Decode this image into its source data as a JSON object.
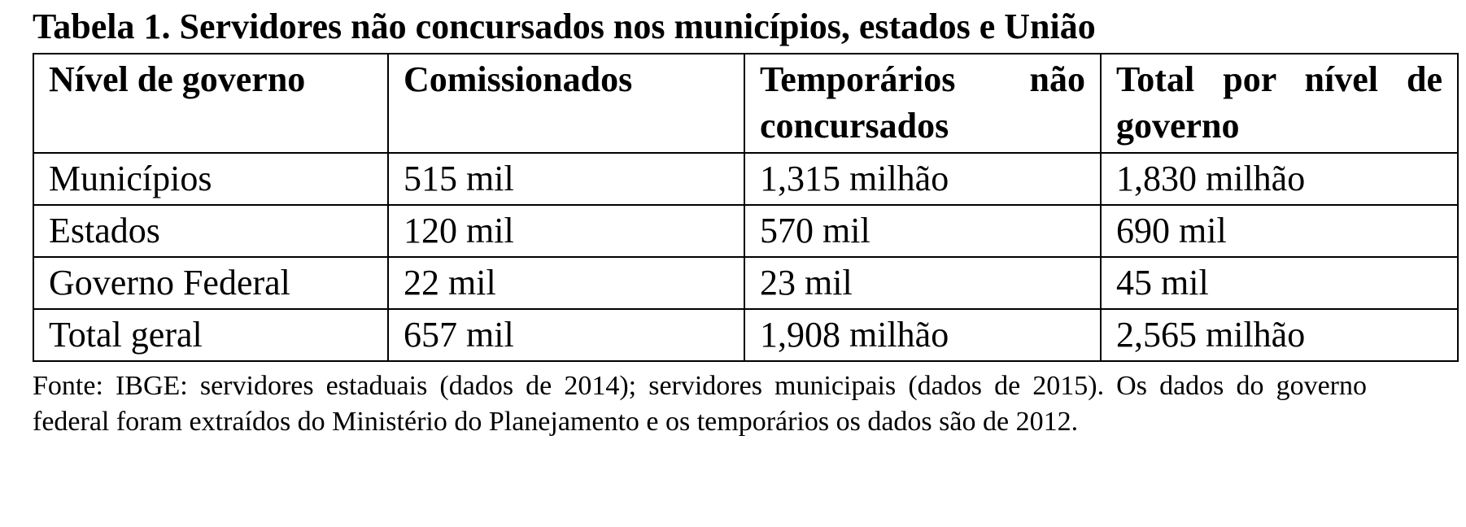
{
  "title": "Tabela 1. Servidores não concursados nos municípios, estados e União",
  "table": {
    "headers": [
      "Nível de governo",
      "Comissionados",
      "Temporários não concursados",
      "Total por nível de governo"
    ],
    "rows": [
      [
        "Municípios",
        "515 mil",
        "1,315 milhão",
        "1,830 milhão"
      ],
      [
        "Estados",
        "120 mil",
        "570 mil",
        "690 mil"
      ],
      [
        "Governo Federal",
        "22 mil",
        "23 mil",
        "45 mil"
      ],
      [
        "Total geral",
        "657 mil",
        "1,908 milhão",
        "2,565 milhão"
      ]
    ]
  },
  "source": "Fonte: IBGE: servidores estaduais (dados de 2014); servidores municipais (dados de 2015). Os dados do governo federal foram extraídos do Ministério do Planejamento e os temporários os dados são de 2012."
}
